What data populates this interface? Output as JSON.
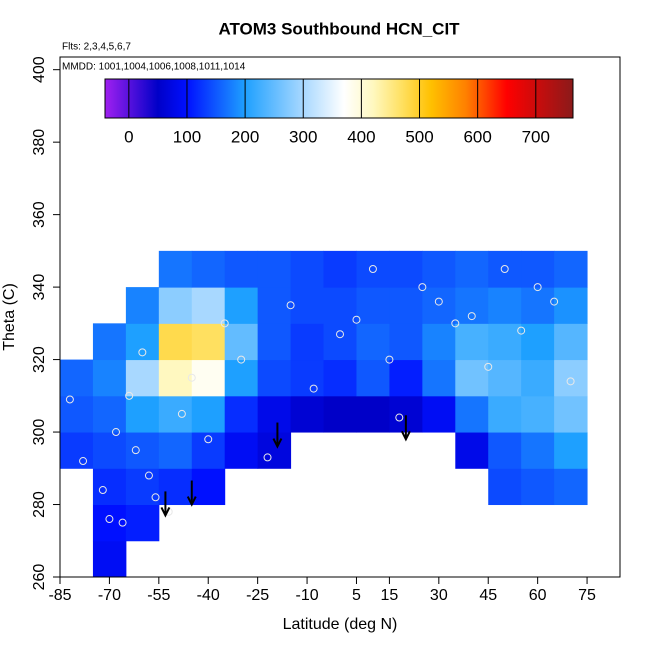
{
  "chart_data": {
    "type": "heatmap",
    "title": "ATOM3 Southbound HCN_CIT",
    "subtitle": "Flts: 2,3,4,5,6,7",
    "annotation": "MMDD: 1001,1004,1006,1008,1011,1014",
    "xlabel": "Latitude (deg N)",
    "ylabel": "Theta (C)",
    "xlim": [
      -85,
      85
    ],
    "ylim": [
      260,
      403.5
    ],
    "xticks": [
      -85,
      -70,
      -55,
      -40,
      -25,
      -10,
      5,
      15,
      30,
      45,
      60,
      75
    ],
    "yticks": [
      260,
      280,
      300,
      320,
      340,
      360,
      380,
      400
    ],
    "x": [
      -80,
      -70,
      -60,
      -50,
      -40,
      -30,
      -20,
      -10,
      0,
      10,
      20,
      30,
      40,
      50,
      60,
      70
    ],
    "y": [
      265,
      275,
      285,
      295,
      305,
      315,
      325,
      335,
      345
    ],
    "cell_width": 10,
    "cell_height": 10,
    "z": [
      [
        null,
        90,
        null,
        null,
        null,
        null,
        null,
        null,
        null,
        null,
        null,
        null,
        null,
        null,
        null,
        null
      ],
      [
        null,
        100,
        110,
        null,
        null,
        null,
        null,
        null,
        null,
        null,
        null,
        null,
        null,
        null,
        null,
        null
      ],
      [
        null,
        120,
        130,
        120,
        100,
        null,
        null,
        null,
        null,
        null,
        null,
        null,
        null,
        140,
        150,
        160
      ],
      [
        130,
        140,
        150,
        160,
        130,
        90,
        70,
        null,
        null,
        null,
        null,
        null,
        80,
        150,
        170,
        200
      ],
      [
        150,
        160,
        200,
        220,
        200,
        120,
        80,
        60,
        50,
        50,
        60,
        90,
        170,
        220,
        230,
        260
      ],
      [
        160,
        180,
        300,
        420,
        380,
        200,
        140,
        130,
        120,
        150,
        110,
        170,
        260,
        240,
        220,
        280
      ],
      [
        null,
        170,
        200,
        480,
        470,
        250,
        150,
        130,
        140,
        160,
        150,
        180,
        230,
        220,
        200,
        240
      ],
      [
        null,
        null,
        180,
        280,
        300,
        200,
        150,
        140,
        140,
        150,
        150,
        160,
        170,
        180,
        170,
        190
      ],
      [
        null,
        null,
        null,
        170,
        160,
        150,
        150,
        140,
        130,
        140,
        140,
        150,
        160,
        150,
        150,
        160
      ]
    ],
    "clim": [
      -41,
      764
    ],
    "cticks": [
      0,
      100,
      200,
      300,
      400,
      500,
      600,
      700
    ],
    "colormap": [
      {
        "value": -41,
        "color": "#a020f0"
      },
      {
        "value": 50,
        "color": "#0000c8"
      },
      {
        "value": 100,
        "color": "#0010ff"
      },
      {
        "value": 200,
        "color": "#1ea0ff"
      },
      {
        "value": 300,
        "color": "#a8d8ff"
      },
      {
        "value": 370,
        "color": "#ffffff"
      },
      {
        "value": 420,
        "color": "#fff8c0"
      },
      {
        "value": 470,
        "color": "#ffe060"
      },
      {
        "value": 520,
        "color": "#ffc000"
      },
      {
        "value": 580,
        "color": "#ff8000"
      },
      {
        "value": 650,
        "color": "#ff0000"
      },
      {
        "value": 764,
        "color": "#8b1a1a"
      }
    ],
    "points": {
      "x": [
        -82,
        -78,
        -72,
        -70,
        -68,
        -66,
        -64,
        -62,
        -60,
        -58,
        -56,
        -52,
        -48,
        -45,
        -40,
        -35,
        -30,
        -22,
        -15,
        -8,
        0,
        5,
        10,
        15,
        18,
        25,
        30,
        35,
        40,
        45,
        50,
        55,
        60,
        65,
        70
      ],
      "y": [
        309,
        292,
        284,
        276,
        300,
        275,
        310,
        295,
        322,
        288,
        282,
        278,
        305,
        315,
        298,
        330,
        320,
        293,
        335,
        312,
        327,
        331,
        345,
        320,
        304,
        340,
        336,
        330,
        332,
        318,
        345,
        328,
        340,
        336,
        314
      ]
    },
    "arrows": {
      "x": [
        -53,
        -45,
        -19,
        20
      ],
      "y": [
        277,
        280,
        296,
        298
      ]
    }
  }
}
